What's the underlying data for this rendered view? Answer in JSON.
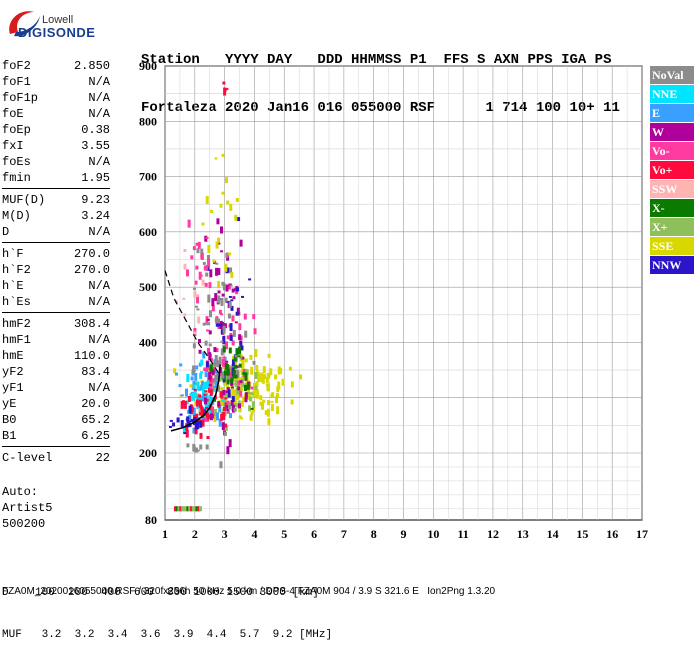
{
  "logo": {
    "line1": "Lowell",
    "line2": "DIGISONDE"
  },
  "header": {
    "row1": "Station   YYYY DAY   DDD HHMMSS P1  FFS S AXN PPS IGA PS",
    "row2": "Fortaleza 2020 Jan16 016 055000 RSF      1 714 100 10+ 11"
  },
  "params": {
    "group1": [
      {
        "name": "foF2",
        "value": "2.850"
      },
      {
        "name": "foF1",
        "value": "N/A"
      },
      {
        "name": "foF1p",
        "value": "N/A"
      },
      {
        "name": "foE",
        "value": "N/A"
      },
      {
        "name": "foEp",
        "value": "0.38"
      },
      {
        "name": "fxI",
        "value": "3.55"
      },
      {
        "name": "foEs",
        "value": "N/A"
      },
      {
        "name": "fmin",
        "value": "1.95"
      }
    ],
    "group2": [
      {
        "name": "MUF(D)",
        "value": "9.23"
      },
      {
        "name": "M(D)",
        "value": "3.24"
      },
      {
        "name": "D",
        "value": "N/A"
      }
    ],
    "group3": [
      {
        "name": "h`F",
        "value": "270.0"
      },
      {
        "name": "h`F2",
        "value": "270.0"
      },
      {
        "name": "h`E",
        "value": "N/A"
      },
      {
        "name": "h`Es",
        "value": "N/A"
      }
    ],
    "group4": [
      {
        "name": "hmF2",
        "value": "308.4"
      },
      {
        "name": "hmF1",
        "value": "N/A"
      },
      {
        "name": "hmE",
        "value": "110.0"
      },
      {
        "name": "yF2",
        "value": "83.4"
      },
      {
        "name": "yF1",
        "value": "N/A"
      },
      {
        "name": "yE",
        "value": "20.0"
      },
      {
        "name": "B0",
        "value": "65.2"
      },
      {
        "name": "B1",
        "value": "6.25"
      }
    ],
    "group5": [
      {
        "name": "C-level",
        "value": "22"
      }
    ]
  },
  "auto": {
    "line1": "Auto:",
    "line2": "Artist5",
    "line3": "500200"
  },
  "legend": [
    {
      "label": "NoVal",
      "color": "#8c8c8c"
    },
    {
      "label": "NNE",
      "color": "#00e5ff"
    },
    {
      "label": "E",
      "color": "#3aa0ff"
    },
    {
      "label": "W",
      "color": "#b0009a"
    },
    {
      "label": "Vo-",
      "color": "#ff3aa0"
    },
    {
      "label": "Vo+",
      "color": "#ff0a3c"
    },
    {
      "label": "SSW",
      "color": "#ffb3b3"
    },
    {
      "label": "X-",
      "color": "#0a7a00"
    },
    {
      "label": "X+",
      "color": "#8fbf5a"
    },
    {
      "label": "SSE",
      "color": "#d8d800"
    },
    {
      "label": "NNW",
      "color": "#2a16c8"
    }
  ],
  "footer": {
    "row1": "D    100  200  400  600  800 1000 1500 3000 [km]",
    "row2": "MUF   3.2  3.2  3.4  3.6  3.9  4.4  5.7  9.2 [MHz]",
    "row3": "FZA0M_2020016055000.RSF / 320fx256h 50 kHz 5.0 km / DPS-4 FZA0M 904 / 3.9 S 321.6 E   Ion2Png 1.3.20"
  },
  "chart_data": {
    "type": "scatter",
    "xlim": [
      1,
      17
    ],
    "ylim": [
      80,
      900
    ],
    "xticks": [
      "1",
      "2",
      "3",
      "4",
      "5",
      "6",
      "7",
      "8",
      "9",
      "10",
      "11",
      "12",
      "13",
      "14",
      "15",
      "16",
      "17"
    ],
    "yticks": [
      {
        "label": "900",
        "value": 900
      },
      {
        "label": "800",
        "value": 800
      },
      {
        "label": "700",
        "value": 700
      },
      {
        "label": "600",
        "value": 600
      },
      {
        "label": "500",
        "value": 500
      },
      {
        "label": "400",
        "value": 400
      },
      {
        "label": "300",
        "value": 300
      },
      {
        "label": "200",
        "value": 200
      },
      {
        "label": "80",
        "value": 80
      }
    ],
    "grid": true,
    "clusters": [
      {
        "color": "#d8d800",
        "xc": 3.7,
        "yc": 320,
        "sx": 0.75,
        "sy": 28,
        "n": 160
      },
      {
        "color": "#8fbf5a",
        "xc": 3.2,
        "yc": 305,
        "sx": 0.55,
        "sy": 28,
        "n": 60
      },
      {
        "color": "#3aa0ff",
        "xc": 2.3,
        "yc": 305,
        "sx": 0.45,
        "sy": 30,
        "n": 55
      },
      {
        "color": "#00e5ff",
        "xc": 2.1,
        "yc": 295,
        "sx": 0.4,
        "sy": 28,
        "n": 35
      },
      {
        "color": "#ff0a3c",
        "xc": 2.4,
        "yc": 280,
        "sx": 0.45,
        "sy": 25,
        "n": 55
      },
      {
        "color": "#ff3aa0",
        "xc": 3.0,
        "yc": 380,
        "sx": 0.5,
        "sy": 60,
        "n": 55
      },
      {
        "color": "#b0009a",
        "xc": 3.0,
        "yc": 430,
        "sx": 0.4,
        "sy": 90,
        "n": 70
      },
      {
        "color": "#2a16c8",
        "xc": 3.1,
        "yc": 440,
        "sx": 0.35,
        "sy": 80,
        "n": 30
      },
      {
        "color": "#8c8c8c",
        "xc": 2.9,
        "yc": 400,
        "sx": 0.45,
        "sy": 90,
        "n": 55
      },
      {
        "color": "#d8d800",
        "xc": 2.9,
        "yc": 620,
        "sx": 0.3,
        "sy": 60,
        "n": 20
      },
      {
        "color": "#ff3aa0",
        "xc": 2.2,
        "yc": 550,
        "sx": 0.25,
        "sy": 40,
        "n": 18
      },
      {
        "color": "#ffb3b3",
        "xc": 2.0,
        "yc": 480,
        "sx": 0.3,
        "sy": 40,
        "n": 10
      },
      {
        "color": "#0a7a00",
        "xc": 3.3,
        "yc": 340,
        "sx": 0.35,
        "sy": 25,
        "n": 25
      },
      {
        "color": "#2a16c8",
        "xc": 1.8,
        "yc": 255,
        "sx": 0.3,
        "sy": 8,
        "n": 20
      },
      {
        "color": "#8c8c8c",
        "xc": 2.0,
        "yc": 210,
        "sx": 0.15,
        "sy": 4,
        "n": 6
      },
      {
        "color": "#ff0a3c",
        "xc": 3.0,
        "yc": 880,
        "sx": 0.05,
        "sy": 30,
        "n": 4
      }
    ],
    "low_band": {
      "colors": [
        "#8fbf5a",
        "#0a7a00",
        "#ff0a3c"
      ],
      "x": [
        1.3,
        2.2
      ],
      "y": 101
    },
    "profile_curve": {
      "x": [
        1.2,
        1.6,
        2.0,
        2.3,
        2.5,
        2.7,
        2.8,
        2.85
      ],
      "y": [
        240,
        246,
        256,
        268,
        282,
        305,
        330,
        360
      ]
    },
    "dashed_curve": {
      "x": [
        1.0,
        1.3,
        1.7,
        2.1,
        2.5,
        2.85
      ],
      "y": [
        530,
        480,
        440,
        400,
        370,
        340
      ]
    }
  }
}
